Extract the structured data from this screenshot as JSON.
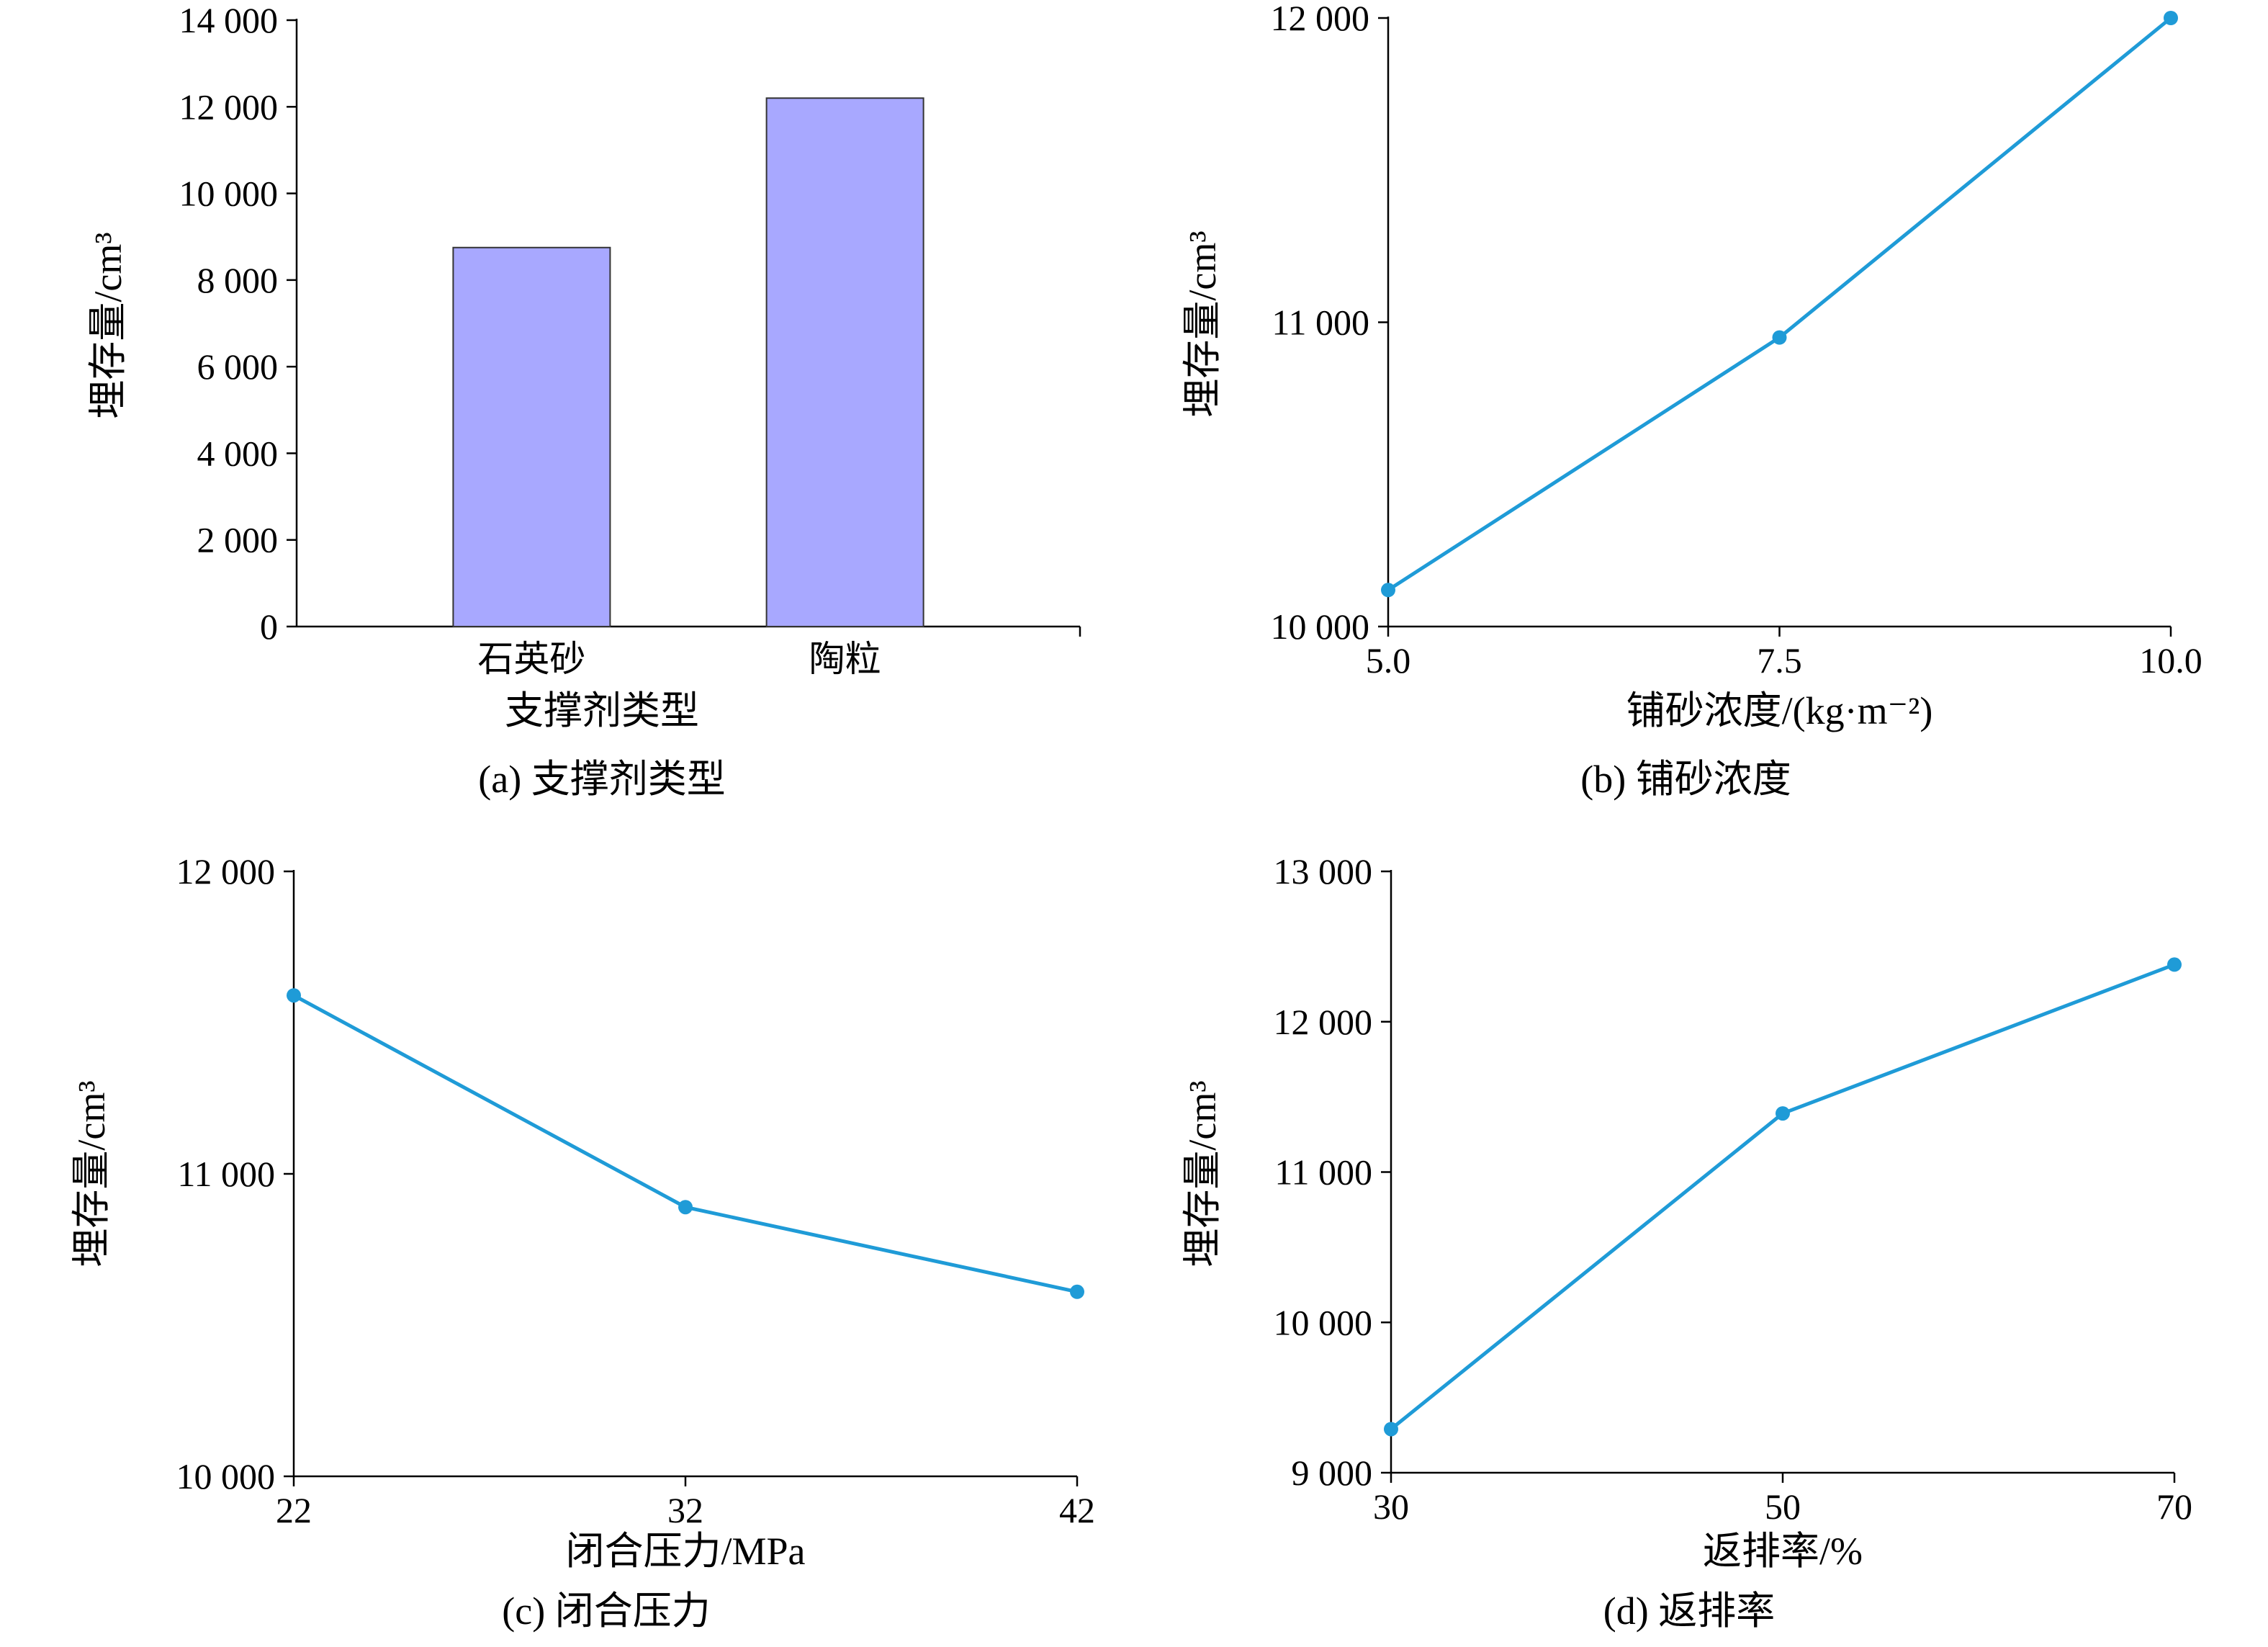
{
  "colors": {
    "bar_fill": "#a8a8ff",
    "line": "#1f9bd7",
    "marker": "#1f9bd7"
  },
  "chart_data": [
    {
      "id": "a",
      "type": "bar",
      "caption": "(a) 支撑剂类型",
      "xlabel": "支撑剂类型",
      "ylabel": "埋存量/cm³",
      "ylim": [
        0,
        14000
      ],
      "yticks": [
        0,
        2000,
        4000,
        6000,
        8000,
        10000,
        12000,
        14000
      ],
      "ytick_labels": [
        "0",
        "2 000",
        "4 000",
        "6 000",
        "8 000",
        "10 000",
        "12 000",
        "14 000"
      ],
      "categories": [
        "石英砂",
        "陶粒"
      ],
      "values": [
        8750,
        12200
      ]
    },
    {
      "id": "b",
      "type": "line",
      "caption": "(b) 铺砂浓度",
      "xlabel": "铺砂浓度/(kg·m⁻²)",
      "ylabel": "埋存量/cm³",
      "xlim": [
        5.0,
        10.0
      ],
      "xticks": [
        5.0,
        7.5,
        10.0
      ],
      "xtick_labels": [
        "5.0",
        "7.5",
        "10.0"
      ],
      "ylim": [
        10000,
        12000
      ],
      "yticks": [
        10000,
        11000,
        12000
      ],
      "ytick_labels": [
        "10 000",
        "11 000",
        "12 000"
      ],
      "x": [
        5.0,
        7.5,
        10.0
      ],
      "y": [
        10120,
        10950,
        12000
      ]
    },
    {
      "id": "c",
      "type": "line",
      "caption": "(c) 闭合压力",
      "xlabel": "闭合压力/MPa",
      "ylabel": "埋存量/cm³",
      "xlim": [
        22,
        42
      ],
      "xticks": [
        22,
        32,
        42
      ],
      "xtick_labels": [
        "22",
        "32",
        "42"
      ],
      "ylim": [
        10000,
        12000
      ],
      "yticks": [
        10000,
        11000,
        12000
      ],
      "ytick_labels": [
        "10 000",
        "11 000",
        "12 000"
      ],
      "x": [
        22,
        32,
        42
      ],
      "y": [
        11590,
        10890,
        10610
      ]
    },
    {
      "id": "d",
      "type": "line",
      "caption": "(d) 返排率",
      "xlabel": "返排率/%",
      "ylabel": "埋存量/cm³",
      "xlim": [
        30,
        70
      ],
      "xticks": [
        30,
        50,
        70
      ],
      "xtick_labels": [
        "30",
        "50",
        "70"
      ],
      "ylim": [
        9000,
        13000
      ],
      "yticks": [
        9000,
        10000,
        11000,
        12000,
        13000
      ],
      "ytick_labels": [
        "9 000",
        "10 000",
        "11 000",
        "12 000",
        "13 000"
      ],
      "x": [
        30,
        50,
        70
      ],
      "y": [
        9290,
        11390,
        12380
      ]
    }
  ]
}
